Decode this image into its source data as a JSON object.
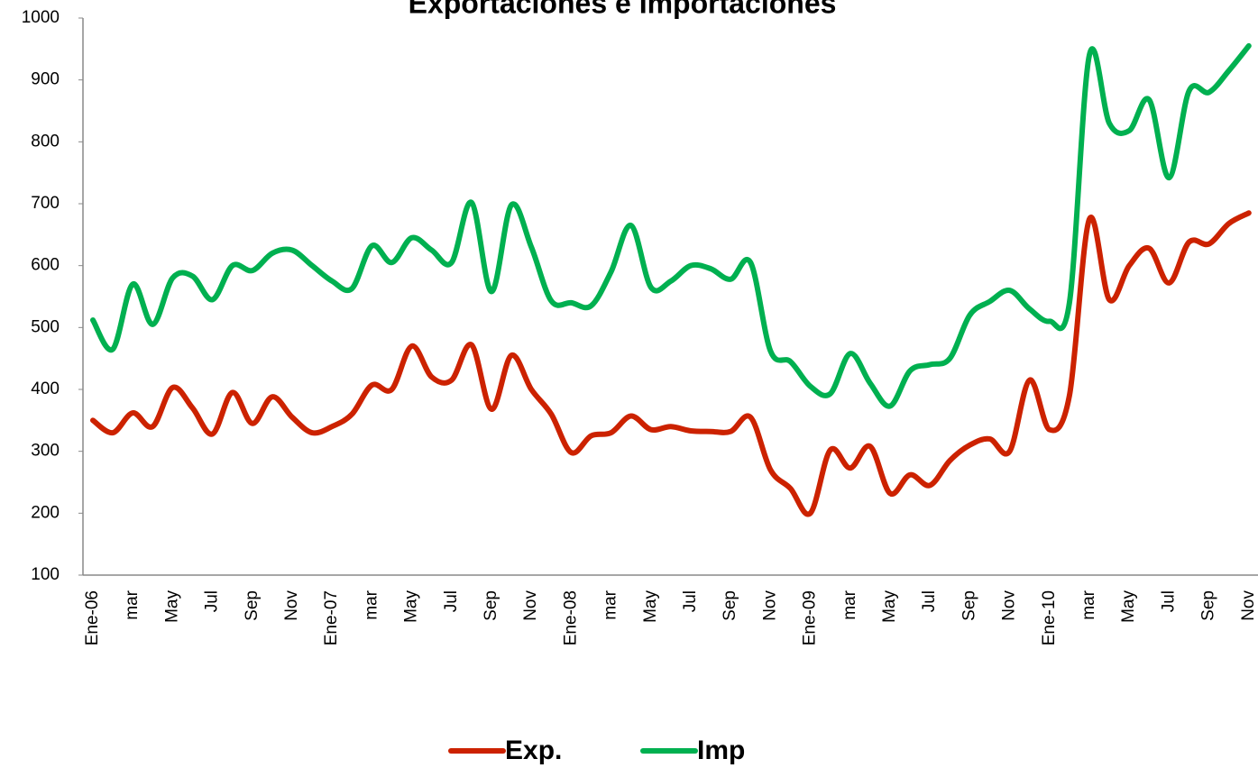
{
  "chart_data": {
    "type": "line",
    "title": "Exportaciones e Importaciones",
    "categories": [
      "Ene-06",
      null,
      "mar",
      null,
      "May",
      null,
      "Jul",
      null,
      "Sep",
      null,
      "Nov",
      null,
      "Ene-07",
      null,
      "mar",
      null,
      "May",
      null,
      "Jul",
      null,
      "Sep",
      null,
      "Nov",
      null,
      "Ene-08",
      null,
      "mar",
      null,
      "May",
      null,
      "Jul",
      null,
      "Sep",
      null,
      "Nov",
      null,
      "Ene-09",
      null,
      "mar",
      null,
      "May",
      null,
      "Jul",
      null,
      "Sep",
      null,
      "Nov",
      null,
      "Ene-10",
      null,
      "mar",
      null,
      "May",
      null,
      "Jul",
      null,
      "Sep",
      null,
      "Nov"
    ],
    "series": [
      {
        "name": "Exp.",
        "color": "#cc2200",
        "values": [
          350,
          330,
          362,
          340,
          403,
          370,
          328,
          395,
          345,
          388,
          355,
          330,
          340,
          360,
          407,
          400,
          470,
          420,
          415,
          472,
          368,
          455,
          400,
          360,
          298,
          325,
          330,
          357,
          335,
          340,
          333,
          332,
          332,
          355,
          270,
          240,
          200,
          302,
          273,
          308,
          232,
          262,
          245,
          285,
          310,
          320,
          300,
          415,
          335,
          390,
          675,
          545,
          600,
          628,
          572,
          638,
          635,
          668,
          685
        ]
      },
      {
        "name": "Imp",
        "color": "#00b050",
        "values": [
          512,
          465,
          570,
          505,
          580,
          583,
          545,
          600,
          592,
          620,
          625,
          600,
          575,
          563,
          632,
          605,
          645,
          625,
          605,
          702,
          558,
          698,
          630,
          543,
          540,
          535,
          590,
          665,
          565,
          575,
          600,
          595,
          578,
          605,
          462,
          445,
          405,
          393,
          458,
          410,
          373,
          430,
          440,
          450,
          520,
          542,
          560,
          530,
          510,
          540,
          940,
          830,
          818,
          868,
          742,
          882,
          880,
          915,
          955
        ]
      }
    ],
    "ylim": [
      100,
      1000
    ],
    "yticks": [
      100,
      200,
      300,
      400,
      500,
      600,
      700,
      800,
      900,
      1000
    ],
    "grid": false,
    "legend": "bottom"
  }
}
